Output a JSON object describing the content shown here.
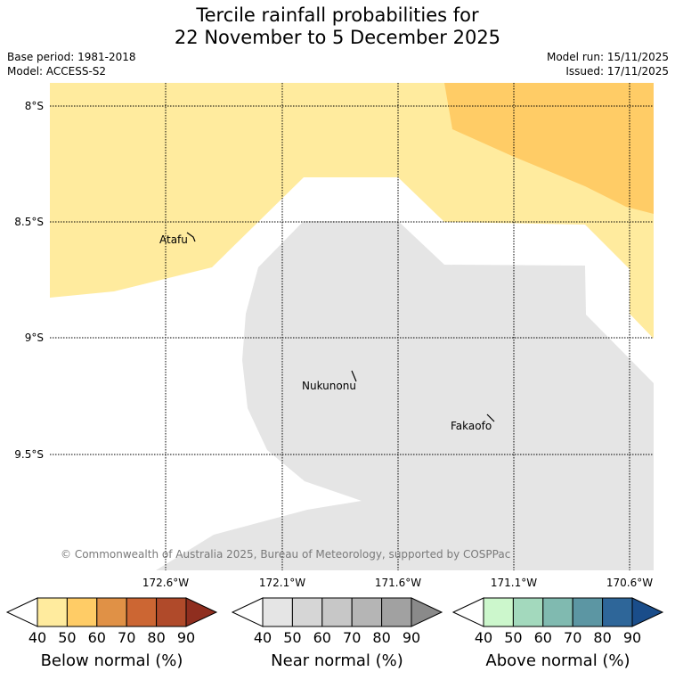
{
  "title": {
    "line1": "Tercile rainfall probabilities for",
    "line2": "22 November to 5 December 2025"
  },
  "meta": {
    "base_period": "Base period: 1981-2018",
    "model": "Model: ACCESS-S2",
    "model_run": "Model run: 15/11/2025",
    "issued": "Issued: 17/11/2025"
  },
  "map": {
    "lat_labels": [
      "8°S",
      "8.5°S",
      "9°S",
      "9.5°S"
    ],
    "lon_labels": [
      "172.6°W",
      "172.1°W",
      "171.6°W",
      "171.1°W",
      "170.6°W"
    ],
    "places": [
      {
        "name": "Atafu"
      },
      {
        "name": "Nukunonu"
      },
      {
        "name": "Fakaofo"
      }
    ],
    "copyright": "© Commonwealth of Australia 2025, Bureau of Meteorology, supported by COSPPac",
    "region_colors": {
      "below_40_50": "#ffeb9e",
      "below_50_60": "#ffcc66",
      "near_40_50": "#e5e5e5"
    }
  },
  "legends": [
    {
      "label": "Below normal (%)",
      "ticks": [
        "40",
        "50",
        "60",
        "70",
        "80",
        "90"
      ],
      "colors": [
        "#ffeb9e",
        "#ffcc66",
        "#e09146",
        "#cc6633",
        "#b04a2a",
        "#8f2e1f"
      ]
    },
    {
      "label": "Near normal (%)",
      "ticks": [
        "40",
        "50",
        "60",
        "70",
        "80",
        "90"
      ],
      "colors": [
        "#e5e5e5",
        "#d6d6d6",
        "#c7c7c7",
        "#b5b5b5",
        "#a1a1a1",
        "#8a8a8a"
      ]
    },
    {
      "label": "Above normal (%)",
      "ticks": [
        "40",
        "50",
        "60",
        "70",
        "80",
        "90"
      ],
      "colors": [
        "#ccf7cc",
        "#a3d9bd",
        "#80bab0",
        "#5c96a3",
        "#2e6699",
        "#1a4d8a"
      ]
    }
  ]
}
